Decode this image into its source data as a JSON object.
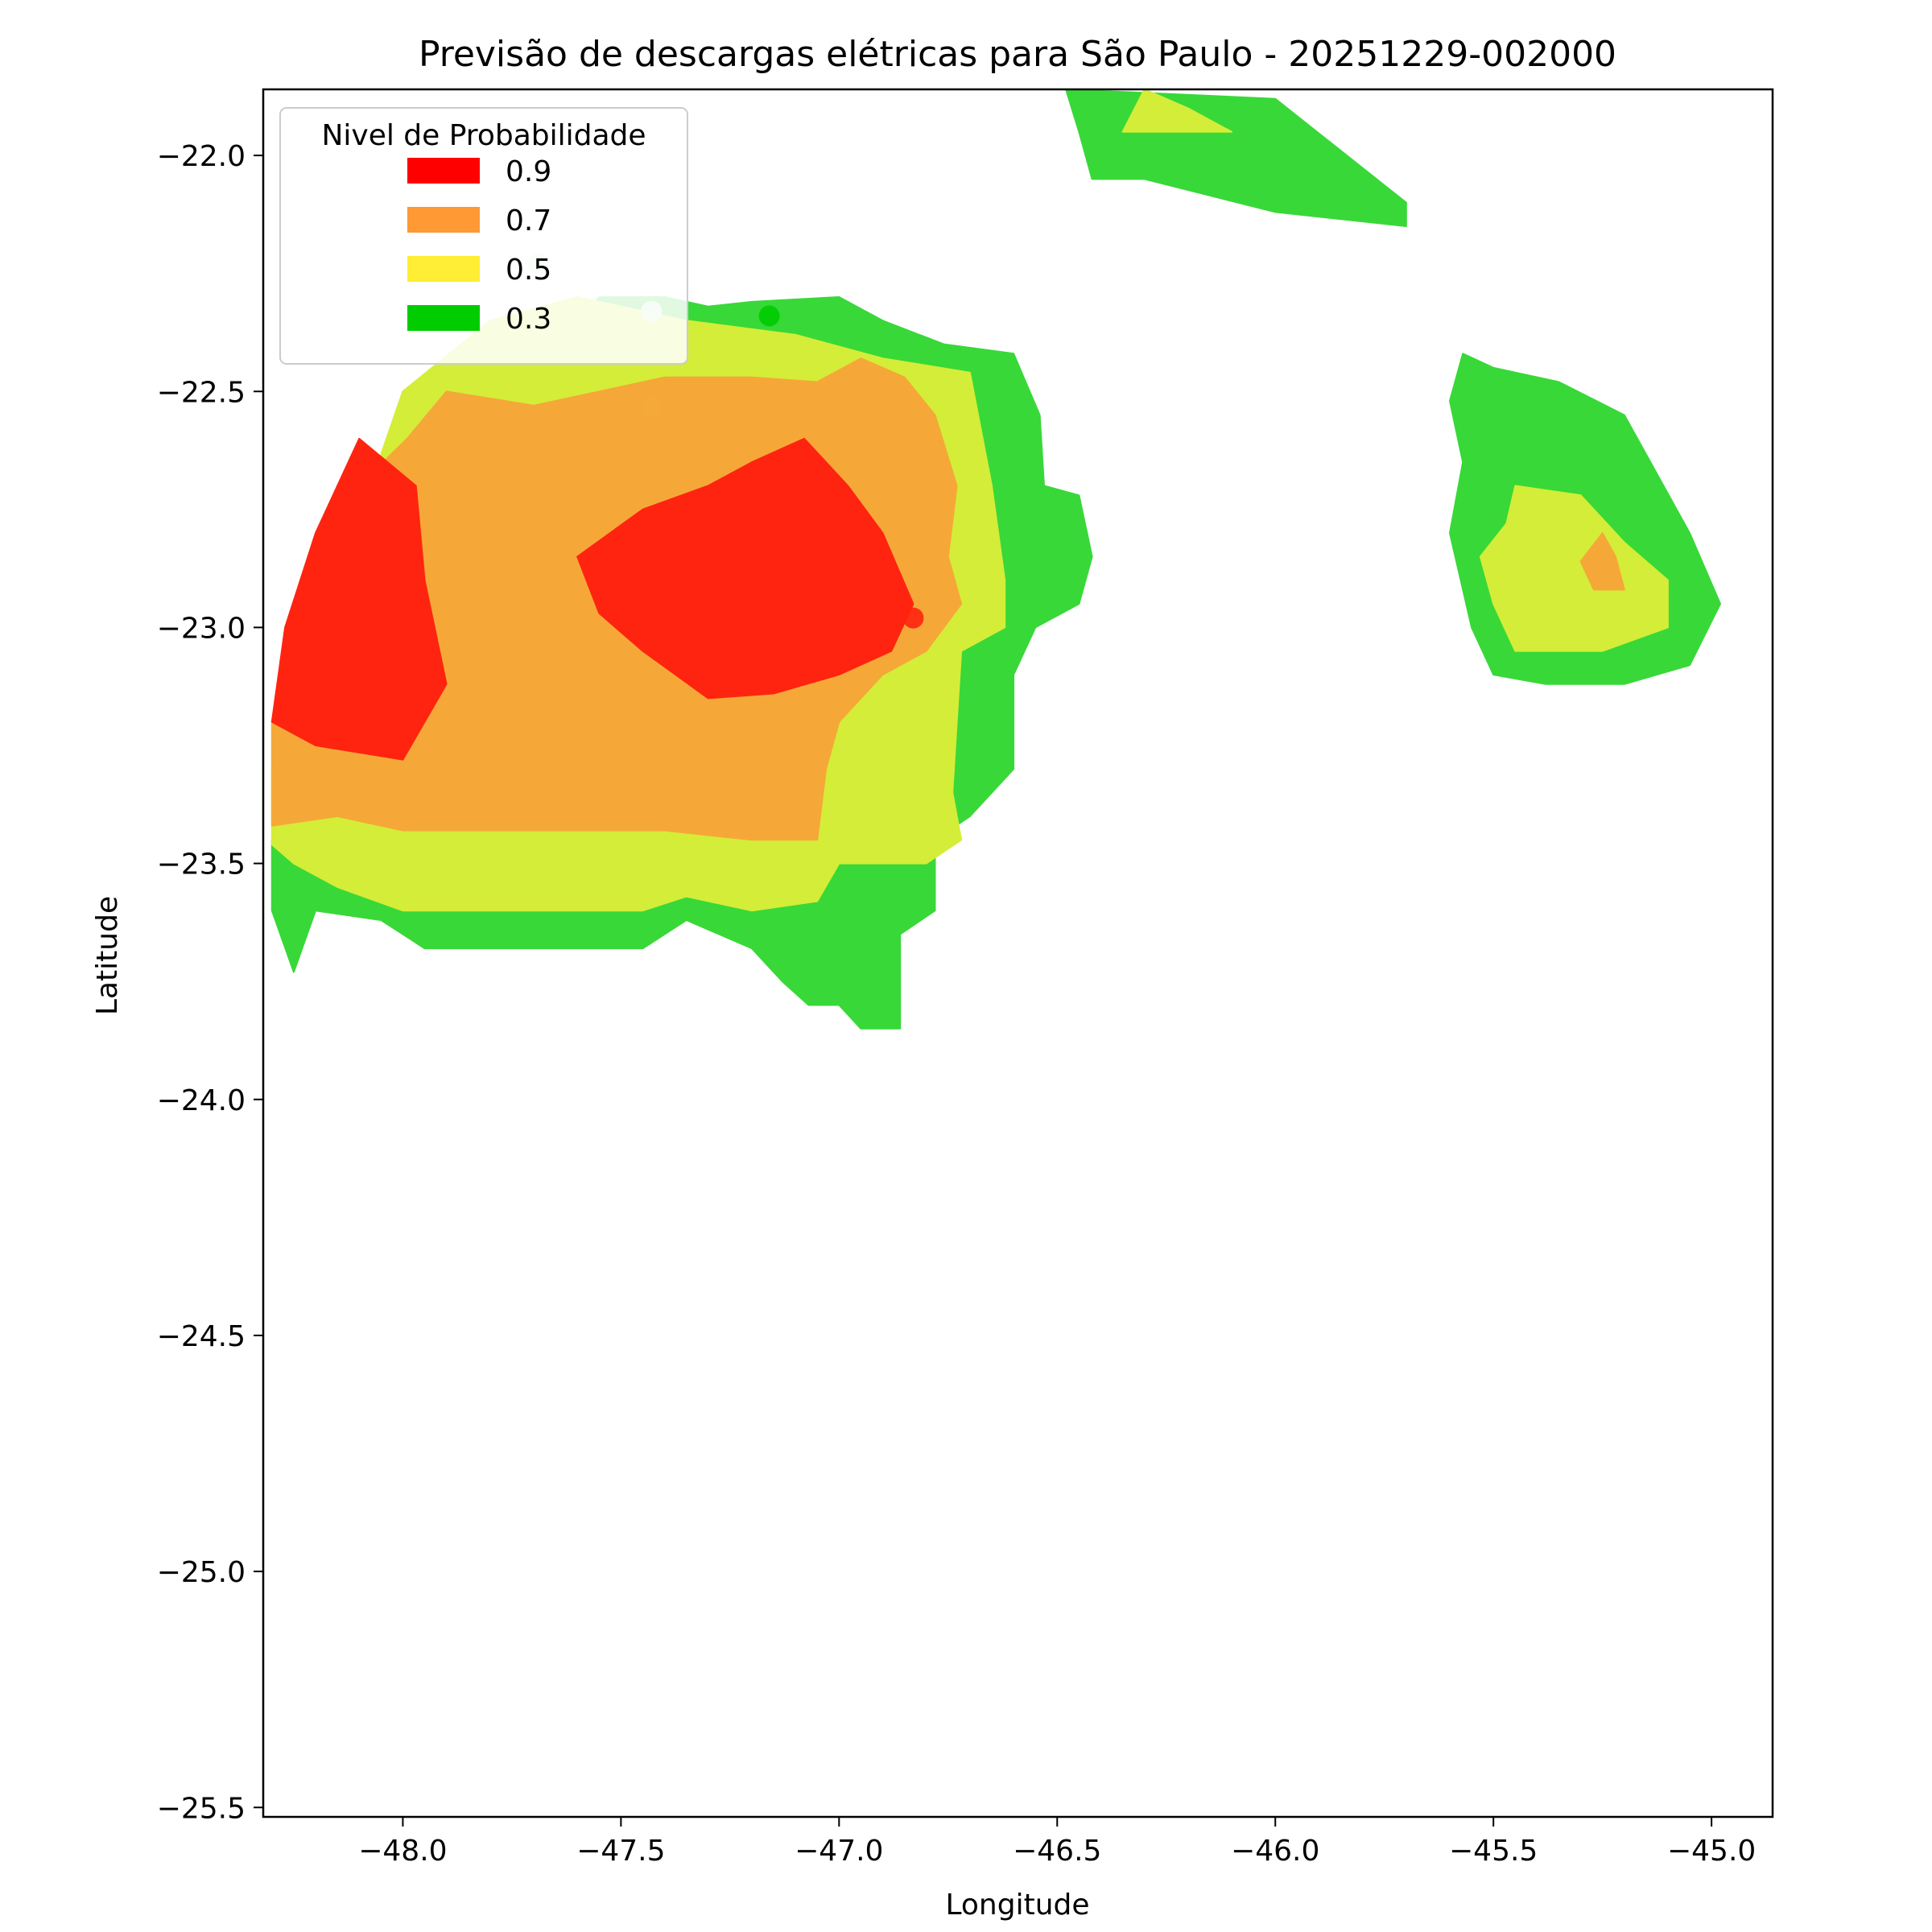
{
  "chart_data": {
    "type": "area",
    "title": "Previsão de descargas elétricas para São Paulo - 20251229-002000",
    "xlabel": "Longitude",
    "ylabel": "Latitude",
    "xlim": [
      -48.32,
      -44.86
    ],
    "ylim": [
      -25.52,
      -21.86
    ],
    "xticks": [
      -48.0,
      -47.5,
      -47.0,
      -46.5,
      -46.0,
      -45.5,
      -45.0
    ],
    "xtick_labels": [
      "−48.0",
      "−47.5",
      "−47.0",
      "−46.5",
      "−46.0",
      "−45.5",
      "−45.0"
    ],
    "yticks": [
      -22.0,
      -22.5,
      -23.0,
      -23.5,
      -24.0,
      -24.5,
      -25.0,
      -25.5
    ],
    "ytick_labels": [
      "−22.0",
      "−22.5",
      "−23.0",
      "−23.5",
      "−24.0",
      "−24.5",
      "−25.0",
      "−25.5"
    ],
    "grid": false,
    "legend": {
      "title": "Nivel de Probabilidade",
      "placement": "top-left",
      "entries": [
        {
          "label": "0.9",
          "color": "#ff0000"
        },
        {
          "label": "0.7",
          "color": "#ff9933"
        },
        {
          "label": "0.5",
          "color": "#ffee33"
        },
        {
          "label": "0.3",
          "color": "#00cc00"
        }
      ]
    },
    "series": [
      {
        "name": "0.3",
        "color": "#38d838",
        "polygons": [
          [
            [
              -47.4,
              -22.3
            ],
            [
              -47.3,
              -22.32
            ],
            [
              -47.2,
              -22.31
            ],
            [
              -47.0,
              -22.3
            ],
            [
              -46.9,
              -22.35
            ],
            [
              -46.76,
              -22.4
            ],
            [
              -46.6,
              -22.42
            ],
            [
              -46.54,
              -22.55
            ],
            [
              -46.53,
              -22.7
            ],
            [
              -46.45,
              -22.72
            ],
            [
              -46.42,
              -22.85
            ],
            [
              -46.45,
              -22.95
            ],
            [
              -46.55,
              -23.0
            ],
            [
              -46.6,
              -23.1
            ],
            [
              -46.6,
              -23.3
            ],
            [
              -46.7,
              -23.4
            ],
            [
              -46.78,
              -23.45
            ],
            [
              -46.78,
              -23.6
            ],
            [
              -46.86,
              -23.65
            ],
            [
              -46.86,
              -23.85
            ],
            [
              -46.95,
              -23.85
            ],
            [
              -47.0,
              -23.8
            ],
            [
              -47.07,
              -23.8
            ],
            [
              -47.13,
              -23.75
            ],
            [
              -47.2,
              -23.68
            ],
            [
              -47.35,
              -23.62
            ],
            [
              -47.45,
              -23.68
            ],
            [
              -47.6,
              -23.68
            ],
            [
              -47.8,
              -23.68
            ],
            [
              -47.95,
              -23.68
            ],
            [
              -48.05,
              -23.62
            ],
            [
              -48.2,
              -23.6
            ],
            [
              -48.25,
              -23.73
            ],
            [
              -48.3,
              -23.6
            ],
            [
              -48.3,
              -23.45
            ],
            [
              -48.1,
              -23.4
            ],
            [
              -47.8,
              -22.7
            ],
            [
              -47.7,
              -22.45
            ],
            [
              -47.55,
              -22.3
            ]
          ],
          [
            [
              -46.48,
              -21.86
            ],
            [
              -46.0,
              -21.88
            ],
            [
              -45.7,
              -22.1
            ],
            [
              -45.7,
              -22.15
            ],
            [
              -46.0,
              -22.12
            ],
            [
              -46.3,
              -22.05
            ],
            [
              -46.42,
              -22.05
            ],
            [
              -46.45,
              -21.95
            ]
          ],
          [
            [
              -45.57,
              -22.42
            ],
            [
              -45.5,
              -22.45
            ],
            [
              -45.35,
              -22.48
            ],
            [
              -45.2,
              -22.55
            ],
            [
              -45.14,
              -22.65
            ],
            [
              -45.05,
              -22.8
            ],
            [
              -44.98,
              -22.95
            ],
            [
              -45.05,
              -23.08
            ],
            [
              -45.2,
              -23.12
            ],
            [
              -45.38,
              -23.12
            ],
            [
              -45.5,
              -23.1
            ],
            [
              -45.55,
              -23.0
            ],
            [
              -45.6,
              -22.8
            ],
            [
              -45.57,
              -22.65
            ],
            [
              -45.6,
              -22.52
            ]
          ]
        ]
      },
      {
        "name": "0.5",
        "color": "#d4ed38",
        "polygons": [
          [
            [
              -47.6,
              -22.3
            ],
            [
              -47.35,
              -22.35
            ],
            [
              -47.1,
              -22.38
            ],
            [
              -46.9,
              -22.43
            ],
            [
              -46.7,
              -22.46
            ],
            [
              -46.65,
              -22.7
            ],
            [
              -46.62,
              -22.9
            ],
            [
              -46.62,
              -23.0
            ],
            [
              -46.72,
              -23.05
            ],
            [
              -46.73,
              -23.2
            ],
            [
              -46.74,
              -23.35
            ],
            [
              -46.72,
              -23.45
            ],
            [
              -46.8,
              -23.5
            ],
            [
              -47.0,
              -23.5
            ],
            [
              -47.05,
              -23.58
            ],
            [
              -47.2,
              -23.6
            ],
            [
              -47.35,
              -23.57
            ],
            [
              -47.45,
              -23.6
            ],
            [
              -47.6,
              -23.6
            ],
            [
              -47.8,
              -23.6
            ],
            [
              -48.0,
              -23.6
            ],
            [
              -48.15,
              -23.55
            ],
            [
              -48.25,
              -23.5
            ],
            [
              -48.3,
              -23.46
            ],
            [
              -48.3,
              -23.3
            ],
            [
              -48.15,
              -22.9
            ],
            [
              -48.0,
              -22.5
            ],
            [
              -47.8,
              -22.35
            ]
          ],
          [
            [
              -46.3,
              -21.86
            ],
            [
              -46.2,
              -21.9
            ],
            [
              -46.1,
              -21.95
            ],
            [
              -46.35,
              -21.95
            ]
          ],
          [
            [
              -45.45,
              -22.7
            ],
            [
              -45.3,
              -22.72
            ],
            [
              -45.2,
              -22.82
            ],
            [
              -45.1,
              -22.9
            ],
            [
              -45.1,
              -23.0
            ],
            [
              -45.25,
              -23.05
            ],
            [
              -45.45,
              -23.05
            ],
            [
              -45.5,
              -22.95
            ],
            [
              -45.53,
              -22.85
            ],
            [
              -45.47,
              -22.78
            ]
          ]
        ]
      },
      {
        "name": "0.7",
        "color": "#f5a838",
        "polygons": [
          [
            [
              -47.99,
              -22.6
            ],
            [
              -47.9,
              -22.5
            ],
            [
              -47.7,
              -22.53
            ],
            [
              -47.55,
              -22.5
            ],
            [
              -47.4,
              -22.47
            ],
            [
              -47.2,
              -22.47
            ],
            [
              -47.05,
              -22.48
            ],
            [
              -46.95,
              -22.43
            ],
            [
              -46.85,
              -22.47
            ],
            [
              -46.78,
              -22.55
            ],
            [
              -46.73,
              -22.7
            ],
            [
              -46.75,
              -22.85
            ],
            [
              -46.72,
              -22.95
            ],
            [
              -46.8,
              -23.05
            ],
            [
              -46.9,
              -23.1
            ],
            [
              -47.0,
              -23.2
            ],
            [
              -47.03,
              -23.3
            ],
            [
              -47.05,
              -23.45
            ],
            [
              -47.2,
              -23.45
            ],
            [
              -47.4,
              -23.43
            ],
            [
              -47.6,
              -23.43
            ],
            [
              -47.8,
              -23.43
            ],
            [
              -48.0,
              -23.43
            ],
            [
              -48.15,
              -23.4
            ],
            [
              -48.3,
              -23.42
            ],
            [
              -48.3,
              -23.2
            ],
            [
              -48.2,
              -22.9
            ],
            [
              -48.1,
              -22.7
            ]
          ],
          [
            [
              -45.25,
              -22.8
            ],
            [
              -45.3,
              -22.86
            ],
            [
              -45.27,
              -22.92
            ],
            [
              -45.2,
              -22.92
            ],
            [
              -45.22,
              -22.85
            ]
          ]
        ]
      },
      {
        "name": "0.9",
        "color": "#ff2410",
        "polygons": [
          [
            [
              -47.08,
              -22.6
            ],
            [
              -46.98,
              -22.7
            ],
            [
              -46.9,
              -22.8
            ],
            [
              -46.83,
              -22.95
            ],
            [
              -46.88,
              -23.05
            ],
            [
              -47.0,
              -23.1
            ],
            [
              -47.15,
              -23.14
            ],
            [
              -47.3,
              -23.15
            ],
            [
              -47.45,
              -23.05
            ],
            [
              -47.55,
              -22.97
            ],
            [
              -47.6,
              -22.85
            ],
            [
              -47.45,
              -22.75
            ],
            [
              -47.3,
              -22.7
            ],
            [
              -47.2,
              -22.65
            ]
          ],
          [
            [
              -48.1,
              -22.6
            ],
            [
              -48.2,
              -22.8
            ],
            [
              -48.27,
              -23.0
            ],
            [
              -48.3,
              -23.2
            ],
            [
              -48.2,
              -23.25
            ],
            [
              -48.0,
              -23.28
            ],
            [
              -47.9,
              -23.12
            ],
            [
              -47.95,
              -22.9
            ],
            [
              -47.97,
              -22.7
            ]
          ]
        ]
      }
    ],
    "points": [
      {
        "x": -47.69,
        "y": -22.23,
        "color": "#d4f2d4"
      },
      {
        "x": -47.43,
        "y": -22.33,
        "color": "#d4f2d4"
      },
      {
        "x": -47.16,
        "y": -22.34,
        "color": "#00cc00"
      },
      {
        "x": -47.43,
        "y": -22.53,
        "color": "#f5a838"
      },
      {
        "x": -46.83,
        "y": -22.98,
        "color": "#ff2410"
      }
    ]
  }
}
